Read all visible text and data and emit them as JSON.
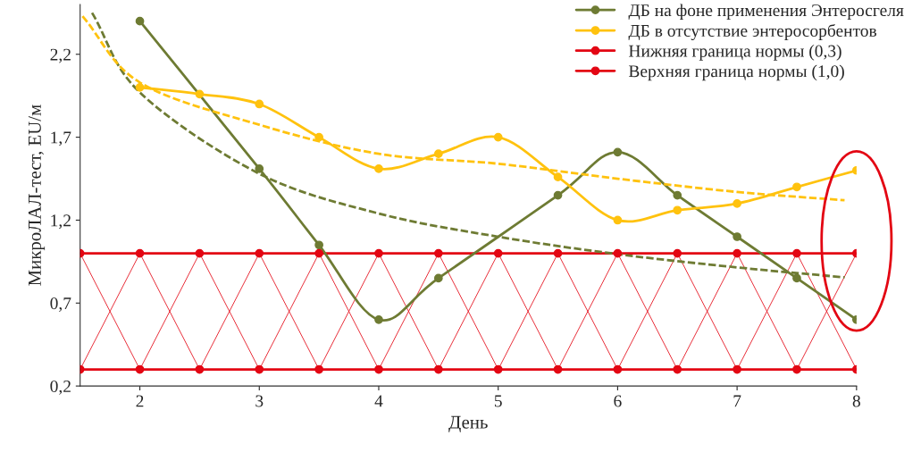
{
  "chart_data": {
    "type": "line",
    "xlabel": "День",
    "ylabel": "МикроЛАЛ-тест, EU/м",
    "xlim": [
      1.5,
      8
    ],
    "xticks": [
      2,
      3,
      4,
      5,
      6,
      7,
      8
    ],
    "ylim": [
      0.2,
      2.5
    ],
    "yticks": [
      {
        "value": 0.2,
        "label": "0,2"
      },
      {
        "value": 0.7,
        "label": "0,7"
      },
      {
        "value": 1.2,
        "label": "1,2"
      },
      {
        "value": 1.7,
        "label": "1,7"
      },
      {
        "value": 2.2,
        "label": "2,2"
      }
    ],
    "grid": false,
    "legend": "top right",
    "marker": "circle",
    "line_style": "solid",
    "series": [
      {
        "name": "ДБ на фоне применения Энтеросгеля",
        "color": "#6e7b33",
        "x": [
          2,
          3,
          3.5,
          4,
          4.5,
          5.5,
          6,
          6.5,
          7,
          7.5,
          8
        ],
        "values": [
          2.4,
          1.51,
          1.05,
          0.6,
          0.85,
          1.35,
          1.61,
          1.35,
          1.1,
          0.85,
          0.6
        ]
      },
      {
        "name": "ДБ в отсутствие энтеросорбентов",
        "color": "#ffc20e",
        "x": [
          2,
          2.5,
          3,
          3.5,
          4,
          4.5,
          5,
          5.5,
          6,
          6.5,
          7,
          7.5,
          8
        ],
        "values": [
          2.0,
          1.96,
          1.9,
          1.7,
          1.51,
          1.6,
          1.7,
          1.46,
          1.2,
          1.26,
          1.3,
          1.4,
          1.5
        ]
      },
      {
        "name": "Нижняя граница нормы (0,3)",
        "color": "#e30613",
        "x": [
          1.5,
          2,
          2.5,
          3,
          3.5,
          4,
          4.5,
          5,
          5.5,
          6,
          6.5,
          7,
          7.5,
          8
        ],
        "values": [
          0.3,
          0.3,
          0.3,
          0.3,
          0.3,
          0.3,
          0.3,
          0.3,
          0.3,
          0.3,
          0.3,
          0.3,
          0.3,
          0.3
        ]
      },
      {
        "name": "Верхняя граница нормы (1,0)",
        "color": "#e30613",
        "x": [
          1.5,
          2,
          2.5,
          3,
          3.5,
          4,
          4.5,
          5,
          5.5,
          6,
          6.5,
          7,
          7.5,
          8
        ],
        "values": [
          1.0,
          1.0,
          1.0,
          1.0,
          1.0,
          1.0,
          1.0,
          1.0,
          1.0,
          1.0,
          1.0,
          1.0,
          1.0,
          1.0
        ]
      },
      {
        "color": "#e30613",
        "marker": "none",
        "x": [
          1.5,
          2,
          2.5,
          3,
          3.5,
          4,
          4.5,
          5,
          5.5,
          6,
          6.5,
          7,
          7.5,
          8
        ],
        "values": [
          1.0,
          0.3,
          1.0,
          0.3,
          1.0,
          0.3,
          1.0,
          0.3,
          1.0,
          0.3,
          1.0,
          0.3,
          1.0,
          0.3
        ]
      },
      {
        "color": "#e30613",
        "marker": "none",
        "x": [
          1.5,
          2,
          2.5,
          3,
          3.5,
          4,
          4.5,
          5,
          5.5,
          6,
          6.5,
          7,
          7.5,
          8
        ],
        "values": [
          0.3,
          1.0,
          0.3,
          1.0,
          0.3,
          1.0,
          0.3,
          1.0,
          0.3,
          1.0,
          0.3,
          1.0,
          0.3,
          1.0
        ]
      },
      {
        "color": "#6e7b33",
        "marker": "none",
        "line_style": "dashed",
        "x": [
          1.6,
          2,
          3,
          4,
          5,
          6,
          7,
          7.9
        ],
        "values": [
          2.45,
          1.97,
          1.48,
          1.24,
          1.1,
          0.995,
          0.915,
          0.855
        ]
      },
      {
        "color": "#ffc20e",
        "marker": "none",
        "line_style": "dashed",
        "x": [
          1.52,
          2,
          3,
          4,
          5,
          6,
          7,
          7.9
        ],
        "values": [
          2.43,
          2.03,
          1.775,
          1.6,
          1.54,
          1.45,
          1.37,
          1.32
        ]
      }
    ]
  }
}
